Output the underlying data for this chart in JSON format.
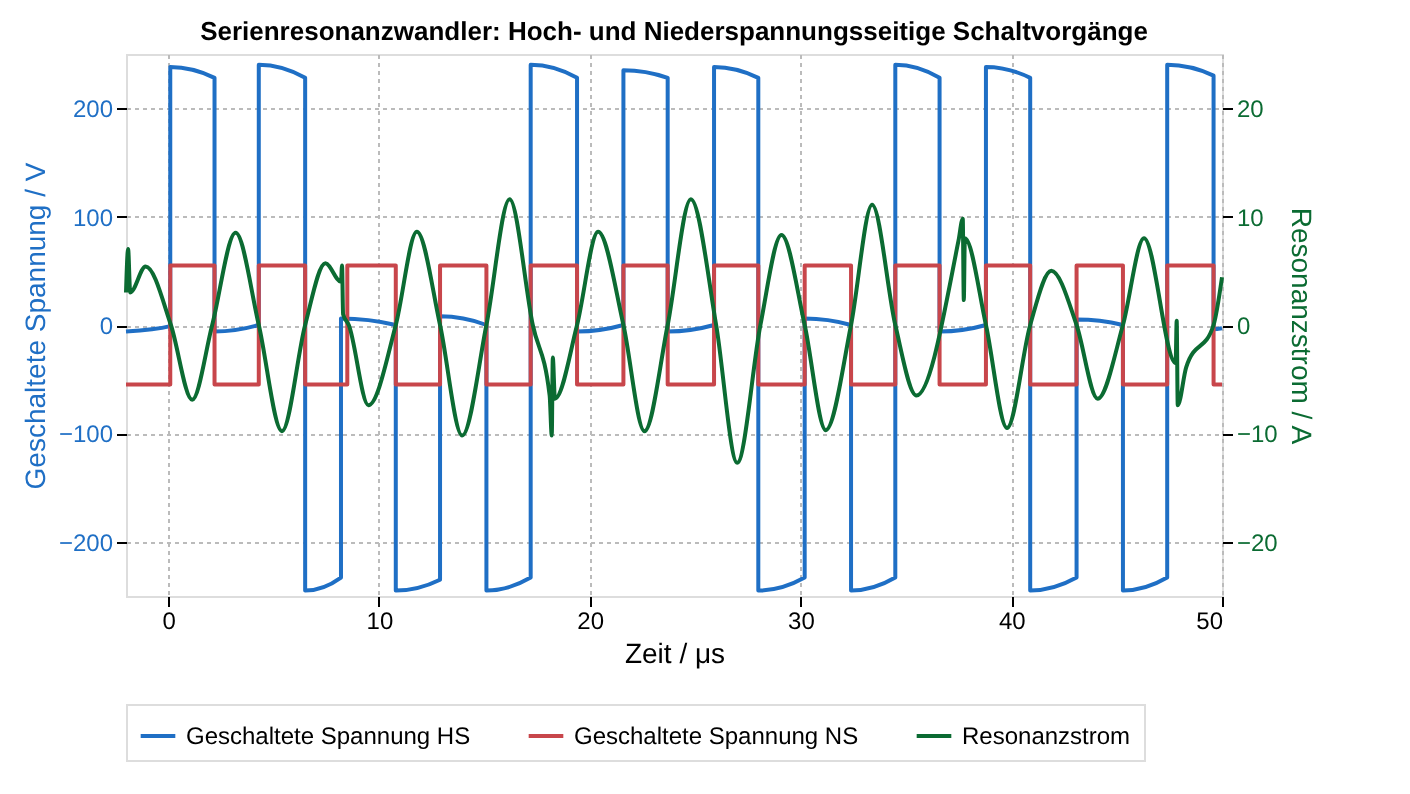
{
  "chart_data": {
    "type": "line",
    "title": "Serienresonanzwandler: Hoch- und Niederspannungsseitige Schaltvorgänge",
    "xlabel": "Zeit / μs",
    "ylabel": "Geschaltete Spannung / V",
    "y2label": "Resonanzstrom / A",
    "xlim": [
      -2,
      50
    ],
    "xticks": [
      0,
      10,
      20,
      30,
      40,
      50
    ],
    "ylim": [
      -250,
      250
    ],
    "yticks": [
      -200,
      -100,
      0,
      100,
      200
    ],
    "y2lim": [
      -25,
      25
    ],
    "y2ticks": [
      -20,
      -10,
      0,
      10,
      20
    ],
    "grid": true,
    "legend": "bottom",
    "series": [
      {
        "name": "Geschaltete Spannung HS",
        "color": "#1f6fc5",
        "x": [
          -2,
          0.1,
          0.1,
          2.2,
          2.2,
          4.3,
          4.3,
          6.5,
          6.5,
          8.2,
          8.2,
          10.8,
          10.8,
          12.9,
          12.9,
          15.1,
          15.1,
          17.2,
          17.2,
          19.4,
          19.4,
          21.6,
          21.6,
          23.7,
          23.7,
          25.9,
          25.9,
          28.0,
          28.0,
          30.2,
          30.2,
          32.4,
          32.4,
          34.5,
          34.5,
          36.6,
          36.6,
          38.8,
          38.8,
          40.9,
          40.9,
          43.1,
          43.1,
          45.3,
          45.3,
          47.4,
          47.4,
          49.6,
          49.6,
          50
        ],
        "values": [
          -6,
          -1,
          238,
          228,
          -6,
          0,
          240,
          228,
          -245,
          -233,
          6,
          0,
          -245,
          -235,
          8,
          0,
          -245,
          -233,
          240,
          228,
          -6,
          0,
          235,
          228,
          -6,
          0,
          238,
          228,
          -245,
          -233,
          6,
          0,
          -245,
          -233,
          240,
          228,
          -6,
          0,
          238,
          228,
          -245,
          -233,
          5,
          0,
          -245,
          -233,
          240,
          230,
          -4,
          -3
        ]
      },
      {
        "name": "Geschaltete Spannung NS",
        "color": "#c8464b",
        "x": [
          -2,
          0.1,
          0.1,
          2.2,
          2.2,
          4.3,
          4.3,
          6.5,
          6.5,
          8.5,
          8.5,
          10.8,
          10.8,
          12.9,
          12.9,
          15.1,
          15.1,
          17.2,
          17.2,
          19.4,
          19.4,
          21.6,
          21.6,
          23.7,
          23.7,
          25.9,
          25.9,
          28.0,
          28.0,
          30.2,
          30.2,
          32.4,
          32.4,
          34.5,
          34.5,
          36.6,
          36.6,
          38.8,
          38.8,
          40.9,
          40.9,
          43.1,
          43.1,
          45.3,
          45.3,
          47.4,
          47.4,
          49.6,
          49.6,
          50
        ],
        "values": [
          -55,
          -55,
          55,
          55,
          -55,
          -55,
          55,
          55,
          -55,
          -55,
          55,
          55,
          -55,
          -55,
          55,
          55,
          -55,
          -55,
          55,
          55,
          -55,
          -55,
          55,
          55,
          -55,
          -55,
          55,
          55,
          -55,
          -55,
          55,
          55,
          -55,
          -55,
          55,
          55,
          -55,
          -55,
          55,
          55,
          -55,
          -55,
          55,
          55,
          -55,
          -55,
          55,
          55,
          -55,
          -55
        ]
      },
      {
        "name": "Resonanzstrom",
        "color": "#0b6b32",
        "axis": "y2",
        "x": [
          -2,
          -1.9,
          -1.8,
          -1.07,
          0.13,
          1.14,
          2.09,
          3.2,
          4.3,
          5.4,
          6.5,
          7.46,
          8.2,
          8.25,
          8.3,
          8.57,
          9.5,
          10.8,
          11.8,
          12.9,
          13.95,
          15.1,
          16.2,
          17.3,
          18.1,
          18.2,
          18.25,
          18.35,
          19.4,
          20.4,
          21.6,
          22.6,
          23.7,
          24.8,
          26.0,
          27.0,
          28.1,
          29.1,
          30.2,
          31.2,
          32.4,
          33.4,
          34.5,
          35.5,
          37.5,
          37.7,
          37.75,
          37.8,
          38.8,
          39.8,
          40.9,
          41.9,
          43.1,
          44.1,
          45.3,
          46.3,
          47.8,
          47.85,
          47.9,
          48.3,
          49.6,
          50
        ],
        "values": [
          3,
          7,
          3,
          5.4,
          0,
          -6.9,
          0,
          8.5,
          0,
          -9.8,
          0,
          5.7,
          4,
          5.5,
          1,
          0,
          -7.4,
          0,
          8.6,
          0,
          -10.2,
          0,
          11.6,
          0,
          -6.5,
          -10.2,
          -3,
          -6.8,
          0,
          8.6,
          0,
          -9.8,
          0,
          11.6,
          0,
          -12.7,
          0,
          8.3,
          0,
          -9.7,
          0,
          11.1,
          0,
          -6.5,
          7.8,
          9.8,
          2.3,
          8,
          0,
          -9.5,
          0,
          5.0,
          0,
          -6.8,
          0,
          8.0,
          -3.5,
          0.4,
          -7.4,
          -3.9,
          0,
          4.4
        ]
      }
    ]
  }
}
